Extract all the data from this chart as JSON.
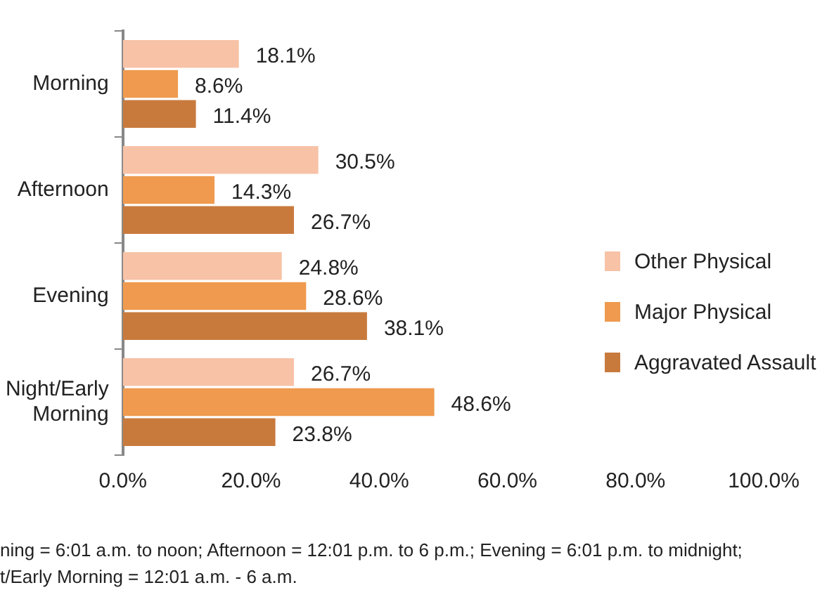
{
  "chart_data": {
    "type": "bar",
    "orientation": "horizontal",
    "categories": [
      "Morning",
      "Afternoon",
      "Evening",
      "Night/Early Morning"
    ],
    "series": [
      {
        "name": "Other Physical",
        "color": "#f7c2a6",
        "values": [
          18.1,
          30.5,
          24.8,
          26.7
        ],
        "value_labels": [
          "18.1%",
          "30.5%",
          "24.8%",
          "26.7%"
        ]
      },
      {
        "name": "Major Physical",
        "color": "#ef9a4e",
        "values": [
          8.6,
          14.3,
          28.6,
          48.6
        ],
        "value_labels": [
          "8.6%",
          "14.3%",
          "28.6%",
          "48.6%"
        ]
      },
      {
        "name": "Aggravated Assault",
        "color": "#c87a3d",
        "values": [
          11.4,
          26.7,
          38.1,
          23.8
        ],
        "value_labels": [
          "11.4%",
          "26.7%",
          "38.1%",
          "23.8%"
        ]
      }
    ],
    "xlim": [
      0,
      100
    ],
    "xticks": [
      {
        "value": 0,
        "label": "0.0%"
      },
      {
        "value": 20,
        "label": "20.0%"
      },
      {
        "value": 40,
        "label": "40.0%"
      },
      {
        "value": 60,
        "label": "60.0%"
      },
      {
        "value": 80,
        "label": "80.0%"
      },
      {
        "value": 100,
        "label": "100.0%"
      }
    ],
    "grid": false,
    "legend": "right",
    "annotations": [
      "ning = 6:01 a.m. to noon; Afternoon = 12:01 p.m. to 6 p.m.; Evening = 6:01 p.m. to midnight;",
      "t/Early Morning = 12:01 a.m. - 6 a.m."
    ]
  }
}
